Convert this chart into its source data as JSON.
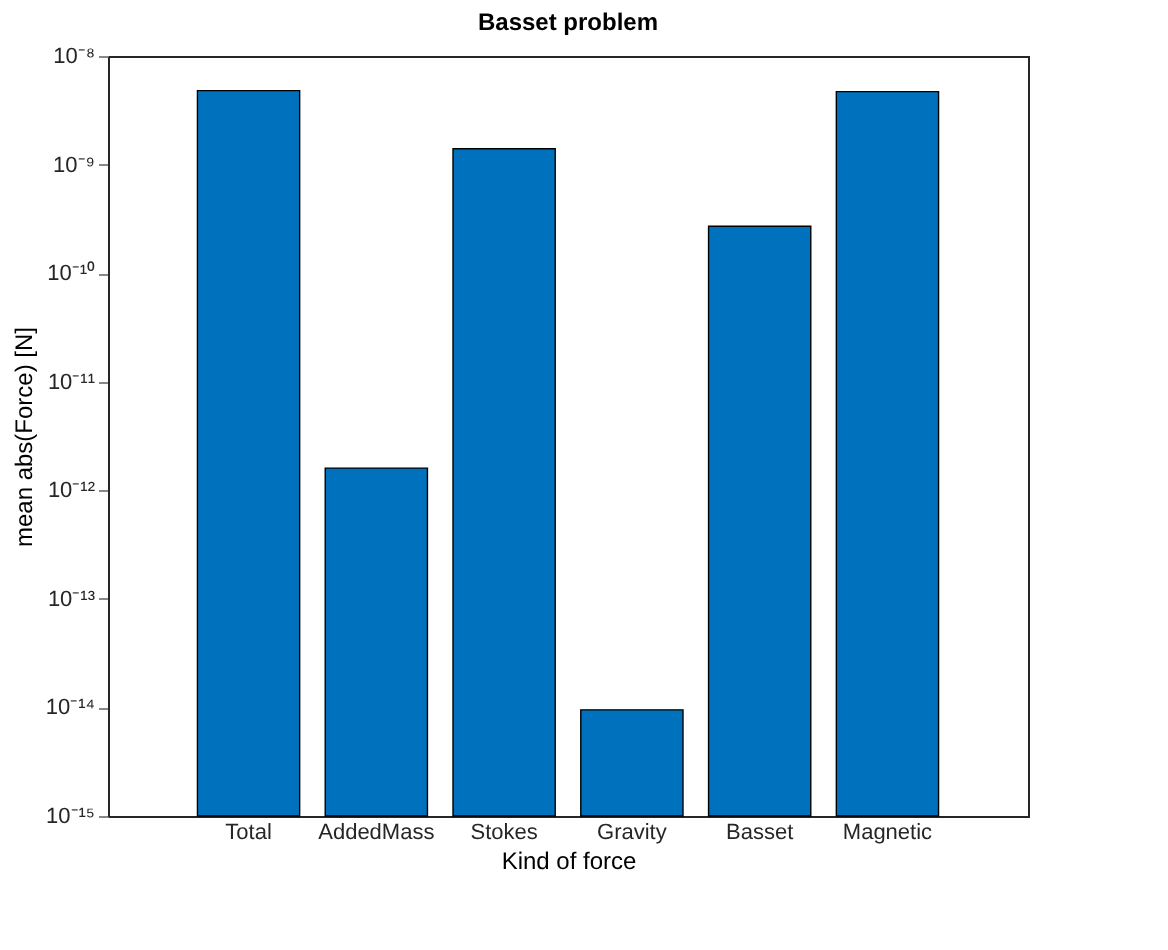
{
  "chart_data": {
    "type": "bar",
    "title": "Basset problem",
    "xlabel": "Kind of force",
    "ylabel": "mean abs(Force) [N]",
    "categories": [
      "Total",
      "AddedMass",
      "Stokes",
      "Gravity",
      "Basset",
      "Magnetic"
    ],
    "values": [
      4.8e-09,
      1.6e-12,
      1.4e-09,
      9.5e-15,
      2.7e-10,
      4.7e-09
    ],
    "color": "#0072bd",
    "log": true,
    "ylim": [
      1e-15,
      1e-08
    ],
    "yticks": [
      {
        "value": 1e-15,
        "label": "10⁻¹⁵"
      },
      {
        "value": 1e-14,
        "label": "10⁻¹⁴"
      },
      {
        "value": 1e-13,
        "label": "10⁻¹³"
      },
      {
        "value": 1e-12,
        "label": "10⁻¹²"
      },
      {
        "value": 1e-11,
        "label": "10⁻¹¹"
      },
      {
        "value": 1e-10,
        "label": "10⁻¹⁰"
      },
      {
        "value": 1e-09,
        "label": "10⁻⁹"
      },
      {
        "value": 1e-08,
        "label": "10⁻⁸"
      }
    ],
    "grid": false
  }
}
